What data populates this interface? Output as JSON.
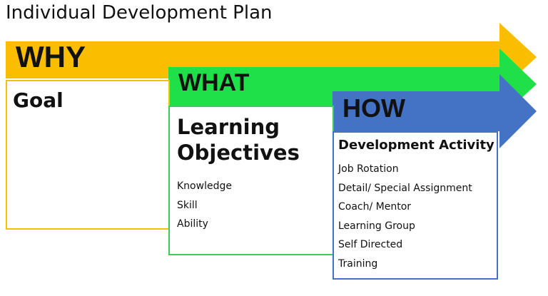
{
  "title": "Individual Development Plan",
  "colors": {
    "why": "#fbbd00",
    "what": "#20e04a",
    "how": "#4472c4"
  },
  "why": {
    "label": "WHY",
    "heading": "Goal"
  },
  "what": {
    "label": "WHAT",
    "heading": "Learning Objectives",
    "items": [
      "Knowledge",
      "Skill",
      "Ability"
    ]
  },
  "how": {
    "label": "HOW",
    "heading": "Development Activity",
    "items": [
      "Job Rotation",
      "Detail/ Special Assignment",
      "Coach/ Mentor",
      "Learning Group",
      "Self Directed",
      "Training"
    ]
  }
}
